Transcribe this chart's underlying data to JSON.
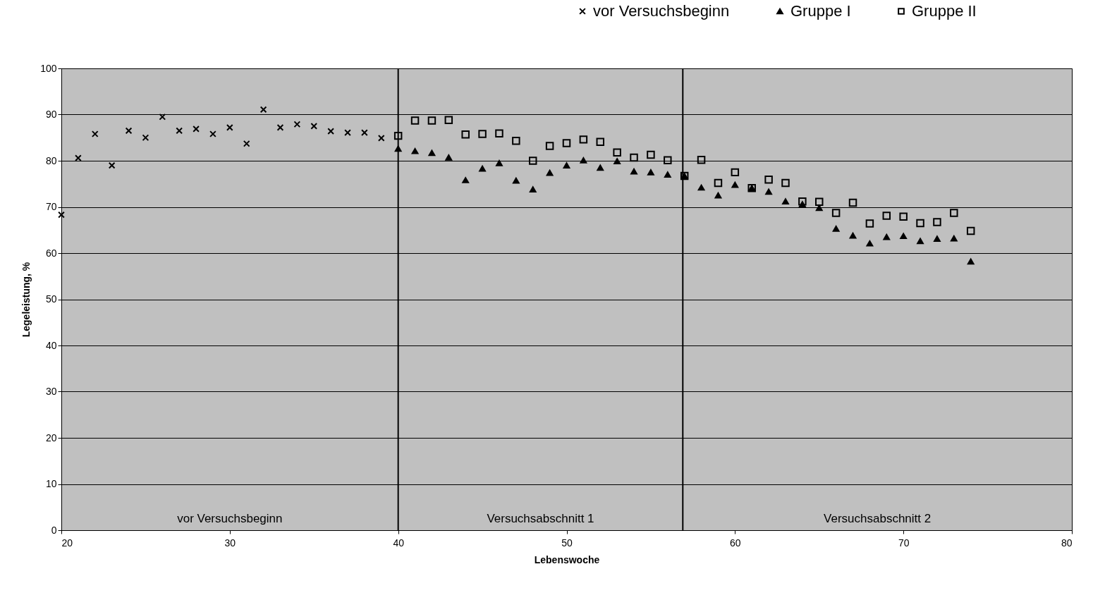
{
  "chart_data": {
    "type": "scatter",
    "xlabel": "Lebenswoche",
    "ylabel": "Legeleistung, %",
    "xlim": [
      20,
      80
    ],
    "xticks": [
      20,
      30,
      40,
      50,
      60,
      70,
      80
    ],
    "ylim": [
      0,
      100
    ],
    "yticks": [
      0,
      10,
      20,
      30,
      40,
      50,
      60,
      70,
      80,
      90,
      100
    ],
    "grid": "y",
    "legend": "top right",
    "series": [
      {
        "name": "vor Versuchsbeginn",
        "color": "#000000",
        "marker": "cross",
        "x": [
          20,
          21,
          22,
          23,
          24,
          25,
          26,
          27,
          28,
          29,
          30,
          31,
          32,
          33,
          34,
          35,
          36,
          37,
          38,
          39
        ],
        "values": [
          68.3,
          80.6,
          85.8,
          79.0,
          86.5,
          85.0,
          89.5,
          86.5,
          86.9,
          85.8,
          87.2,
          83.7,
          91.1,
          87.2,
          87.9,
          87.5,
          86.4,
          86.1,
          86.1,
          84.9
        ]
      },
      {
        "name": "Gruppe I",
        "color": "#000000",
        "marker": "triangle",
        "x": [
          40,
          41,
          42,
          43,
          44,
          45,
          46,
          47,
          48,
          49,
          50,
          51,
          52,
          53,
          54,
          55,
          56,
          57,
          58,
          59,
          60,
          61,
          62,
          63,
          64,
          65,
          66,
          67,
          68,
          69,
          70,
          71,
          72,
          73,
          74
        ],
        "values": [
          82.6,
          82.1,
          81.7,
          80.7,
          75.8,
          78.3,
          79.5,
          75.7,
          73.8,
          77.4,
          79.0,
          80.1,
          78.5,
          79.9,
          77.7,
          77.5,
          77.0,
          76.7,
          74.2,
          72.5,
          74.8,
          74.1,
          73.3,
          71.2,
          70.6,
          69.8,
          65.3,
          63.8,
          62.1,
          63.5,
          63.7,
          62.6,
          63.1,
          63.2,
          58.2
        ]
      },
      {
        "name": "Gruppe II",
        "color": "#000000",
        "marker": "square",
        "x": [
          40,
          41,
          42,
          43,
          44,
          45,
          46,
          47,
          48,
          49,
          50,
          51,
          52,
          53,
          54,
          55,
          56,
          57,
          58,
          59,
          60,
          61,
          62,
          63,
          64,
          65,
          66,
          67,
          68,
          69,
          70,
          71,
          72,
          73,
          74
        ],
        "values": [
          85.4,
          88.7,
          88.7,
          88.8,
          85.7,
          85.8,
          85.9,
          84.3,
          80.0,
          83.2,
          83.8,
          84.6,
          84.1,
          81.8,
          80.7,
          81.3,
          80.1,
          76.7,
          80.2,
          75.2,
          77.5,
          74.1,
          75.9,
          75.2,
          71.2,
          71.1,
          68.7,
          70.9,
          66.4,
          68.1,
          67.9,
          66.5,
          66.7,
          68.7,
          64.8
        ]
      }
    ],
    "ref_lines": [
      {
        "axis": "x",
        "value": 40,
        "color": "#000000"
      },
      {
        "axis": "x",
        "value": 56.9,
        "color": "#000000"
      }
    ],
    "annotations": [
      "vor Versuchsbeginn",
      "Versuchsabschnitt 1",
      "Versuchsabschnitt 2"
    ]
  }
}
